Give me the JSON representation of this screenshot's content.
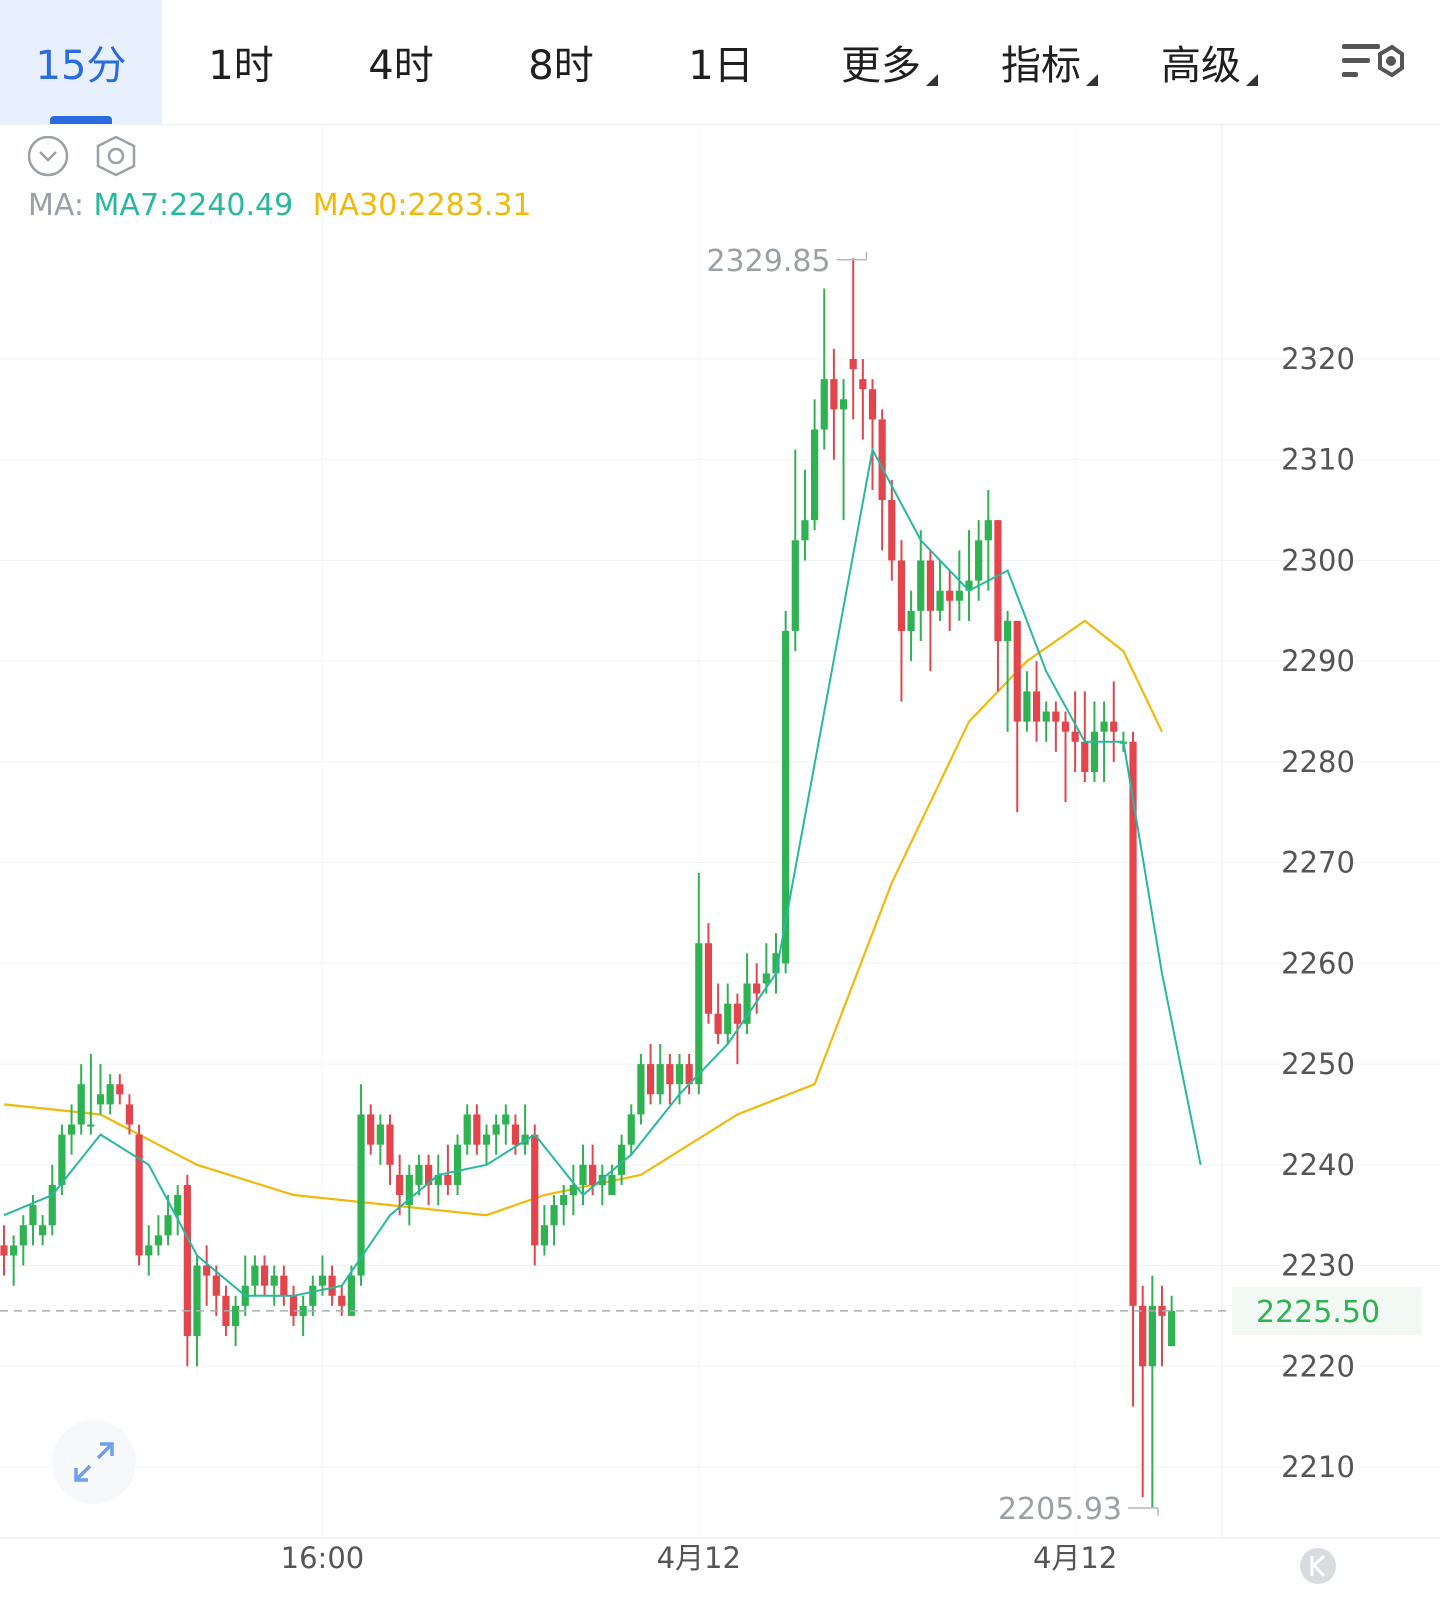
{
  "tabs": [
    {
      "label": "15分",
      "active": true
    },
    {
      "label": "1时",
      "active": false
    },
    {
      "label": "4时",
      "active": false
    },
    {
      "label": "8时",
      "active": false
    },
    {
      "label": "1日",
      "active": false
    },
    {
      "label": "更多",
      "active": false,
      "dropdown": true
    },
    {
      "label": "指标",
      "active": false,
      "dropdown": true
    },
    {
      "label": "高级",
      "active": false,
      "dropdown": true
    }
  ],
  "indicator": {
    "prefix": "MA:",
    "ma7": "MA7:2240.49",
    "ma30": "MA30:2283.31"
  },
  "colors": {
    "up": "#2eb252",
    "down": "#e2454b",
    "ma7": "#26b9a0",
    "ma30": "#f0b90b",
    "accent": "#2a6be0"
  },
  "icons": [
    "chevron-down-circle-icon",
    "hexagon-settings-icon",
    "expand-icon",
    "chart-settings-icon",
    "k-logo-icon"
  ],
  "chart_data": {
    "type": "candlestick",
    "interval": "15分",
    "y_ticks": [
      2320,
      2310,
      2300,
      2290,
      2280,
      2270,
      2260,
      2250,
      2240,
      2230,
      2220,
      2210
    ],
    "ylim": [
      2202,
      2341
    ],
    "x_ticks": [
      {
        "index": 33,
        "label": "16:00"
      },
      {
        "index": 72,
        "label": "4月12"
      },
      {
        "index": 111,
        "label": "4月12"
      }
    ],
    "last_price": "2225.50",
    "high_label": "2329.85",
    "low_label": "2205.93",
    "high_index": 90,
    "low_index": 120,
    "ohlc": [
      [
        2232,
        2234,
        2229,
        2231
      ],
      [
        2231,
        2233,
        2228,
        2232
      ],
      [
        2232,
        2235,
        2230,
        2234
      ],
      [
        2234,
        2237,
        2232,
        2236
      ],
      [
        2233,
        2235,
        2232,
        2234
      ],
      [
        2234,
        2240,
        2233,
        2238
      ],
      [
        2238,
        2244,
        2237,
        2243
      ],
      [
        2243,
        2246,
        2241,
        2244
      ],
      [
        2244,
        2250,
        2243,
        2248
      ],
      [
        2244,
        2251,
        2243,
        2244
      ],
      [
        2246,
        2250,
        2245,
        2247
      ],
      [
        2246,
        2249,
        2245,
        2248
      ],
      [
        2248,
        2249,
        2246,
        2247
      ],
      [
        2246,
        2247,
        2243,
        2244
      ],
      [
        2243,
        2244,
        2230,
        2231
      ],
      [
        2231,
        2234,
        2229,
        2232
      ],
      [
        2232,
        2235,
        2231,
        2233
      ],
      [
        2233,
        2237,
        2232,
        2235
      ],
      [
        2235,
        2238,
        2233,
        2237
      ],
      [
        2238,
        2239,
        2220,
        2223
      ],
      [
        2223,
        2231,
        2220,
        2230
      ],
      [
        2230,
        2232,
        2226,
        2229
      ],
      [
        2229,
        2230,
        2225,
        2227
      ],
      [
        2227,
        2228,
        2223,
        2224
      ],
      [
        2224,
        2227,
        2222,
        2226
      ],
      [
        2226,
        2231,
        2225,
        2228
      ],
      [
        2228,
        2231,
        2227,
        2230
      ],
      [
        2230,
        2231,
        2227,
        2228
      ],
      [
        2228,
        2230,
        2226,
        2229
      ],
      [
        2229,
        2230,
        2226,
        2227
      ],
      [
        2227,
        2228,
        2224,
        2225
      ],
      [
        2225,
        2227,
        2223,
        2226
      ],
      [
        2226,
        2229,
        2225,
        2228
      ],
      [
        2228,
        2231,
        2227,
        2229
      ],
      [
        2229,
        2230,
        2226,
        2227
      ],
      [
        2227,
        2228,
        2225,
        2226
      ],
      [
        2225,
        2230,
        2225,
        2229
      ],
      [
        2229,
        2248,
        2228,
        2245
      ],
      [
        2245,
        2246,
        2241,
        2242
      ],
      [
        2242,
        2245,
        2240,
        2244
      ],
      [
        2244,
        2245,
        2238,
        2240
      ],
      [
        2239,
        2241,
        2235,
        2237
      ],
      [
        2236,
        2240,
        2234,
        2239
      ],
      [
        2238,
        2241,
        2237,
        2240
      ],
      [
        2240,
        2241,
        2236,
        2238
      ],
      [
        2238,
        2241,
        2236,
        2239
      ],
      [
        2239,
        2242,
        2237,
        2238
      ],
      [
        2238,
        2243,
        2237,
        2242
      ],
      [
        2242,
        2246,
        2241,
        2245
      ],
      [
        2245,
        2246,
        2241,
        2242
      ],
      [
        2242,
        2244,
        2240,
        2243
      ],
      [
        2243,
        2245,
        2241,
        2244
      ],
      [
        2244,
        2246,
        2242,
        2245
      ],
      [
        2244,
        2245,
        2241,
        2242
      ],
      [
        2242,
        2246,
        2241,
        2243
      ],
      [
        2243,
        2244,
        2230,
        2232
      ],
      [
        2232,
        2236,
        2231,
        2234
      ],
      [
        2234,
        2237,
        2232,
        2236
      ],
      [
        2236,
        2238,
        2234,
        2237
      ],
      [
        2237,
        2240,
        2235,
        2238
      ],
      [
        2238,
        2242,
        2236,
        2240
      ],
      [
        2240,
        2242,
        2237,
        2238
      ],
      [
        2238,
        2240,
        2236,
        2239
      ],
      [
        2237,
        2240,
        2237,
        2239
      ],
      [
        2239,
        2243,
        2238,
        2242
      ],
      [
        2242,
        2246,
        2241,
        2245
      ],
      [
        2245,
        2251,
        2244,
        2250
      ],
      [
        2250,
        2252,
        2246,
        2247
      ],
      [
        2247,
        2252,
        2246,
        2250
      ],
      [
        2250,
        2251,
        2246,
        2248
      ],
      [
        2248,
        2251,
        2246,
        2250
      ],
      [
        2250,
        2251,
        2247,
        2248
      ],
      [
        2248,
        2269,
        2247,
        2262
      ],
      [
        2262,
        2264,
        2254,
        2255
      ],
      [
        2255,
        2258,
        2252,
        2253
      ],
      [
        2253,
        2258,
        2252,
        2256
      ],
      [
        2256,
        2257,
        2250,
        2254
      ],
      [
        2254,
        2261,
        2253,
        2258
      ],
      [
        2258,
        2260,
        2255,
        2257
      ],
      [
        2258,
        2262,
        2257,
        2259
      ],
      [
        2259,
        2263,
        2257,
        2261
      ],
      [
        2260,
        2295,
        2259,
        2293
      ],
      [
        2293,
        2311,
        2291,
        2302
      ],
      [
        2302,
        2309,
        2300,
        2304
      ],
      [
        2304,
        2316,
        2303,
        2313
      ],
      [
        2313,
        2327,
        2311,
        2318
      ],
      [
        2318,
        2321,
        2310,
        2315
      ],
      [
        2315,
        2318,
        2304,
        2316
      ],
      [
        2320,
        2330,
        2314,
        2319
      ],
      [
        2318,
        2320,
        2312,
        2317
      ],
      [
        2317,
        2318,
        2307,
        2314
      ],
      [
        2314,
        2315,
        2301,
        2306
      ],
      [
        2306,
        2308,
        2298,
        2300
      ],
      [
        2300,
        2302,
        2286,
        2293
      ],
      [
        2293,
        2297,
        2290,
        2295
      ],
      [
        2295,
        2303,
        2292,
        2300
      ],
      [
        2300,
        2301,
        2289,
        2295
      ],
      [
        2295,
        2300,
        2294,
        2297
      ],
      [
        2297,
        2299,
        2293,
        2296
      ],
      [
        2296,
        2301,
        2294,
        2297
      ],
      [
        2297,
        2303,
        2294,
        2298
      ],
      [
        2298,
        2304,
        2296,
        2302
      ],
      [
        2302,
        2307,
        2297,
        2304
      ],
      [
        2304,
        2304,
        2287,
        2292
      ],
      [
        2292,
        2295,
        2283,
        2294
      ],
      [
        2294,
        2294,
        2275,
        2284
      ],
      [
        2284,
        2289,
        2283,
        2287
      ],
      [
        2287,
        2290,
        2282,
        2284
      ],
      [
        2284,
        2286,
        2282,
        2285
      ],
      [
        2285,
        2286,
        2281,
        2284
      ],
      [
        2284,
        2285,
        2276,
        2283
      ],
      [
        2283,
        2287,
        2279,
        2282
      ],
      [
        2282,
        2287,
        2278,
        2279
      ],
      [
        2279,
        2286,
        2278,
        2283
      ],
      [
        2283,
        2286,
        2278,
        2284
      ],
      [
        2284,
        2288,
        2280,
        2283
      ],
      [
        2282,
        2283,
        2281,
        2282
      ],
      [
        2282,
        2283,
        2216,
        2226
      ],
      [
        2226,
        2228,
        2207,
        2220
      ],
      [
        2220,
        2229,
        2206,
        2226
      ],
      [
        2226,
        2228,
        2220,
        2225
      ],
      [
        2222,
        2227,
        2222,
        2225.5
      ]
    ],
    "ma7": [
      [
        0,
        2235
      ],
      [
        5,
        2237
      ],
      [
        10,
        2243
      ],
      [
        15,
        2240
      ],
      [
        20,
        2231
      ],
      [
        25,
        2227
      ],
      [
        30,
        2227
      ],
      [
        35,
        2228
      ],
      [
        40,
        2235
      ],
      [
        45,
        2239
      ],
      [
        50,
        2240
      ],
      [
        55,
        2243
      ],
      [
        60,
        2237
      ],
      [
        65,
        2241
      ],
      [
        70,
        2247
      ],
      [
        75,
        2252
      ],
      [
        80,
        2259
      ],
      [
        85,
        2285
      ],
      [
        90,
        2311
      ],
      [
        95,
        2302
      ],
      [
        100,
        2297
      ],
      [
        104,
        2299
      ],
      [
        108,
        2289
      ],
      [
        112,
        2282
      ],
      [
        116,
        2282
      ],
      [
        120,
        2259
      ],
      [
        124,
        2240
      ]
    ],
    "ma30": [
      [
        0,
        2246
      ],
      [
        10,
        2245
      ],
      [
        20,
        2240
      ],
      [
        30,
        2237
      ],
      [
        40,
        2236
      ],
      [
        50,
        2235
      ],
      [
        56,
        2237
      ],
      [
        66,
        2239
      ],
      [
        76,
        2245
      ],
      [
        84,
        2248
      ],
      [
        92,
        2268
      ],
      [
        100,
        2284
      ],
      [
        106,
        2290
      ],
      [
        112,
        2294
      ],
      [
        116,
        2291
      ],
      [
        120,
        2283
      ]
    ]
  }
}
